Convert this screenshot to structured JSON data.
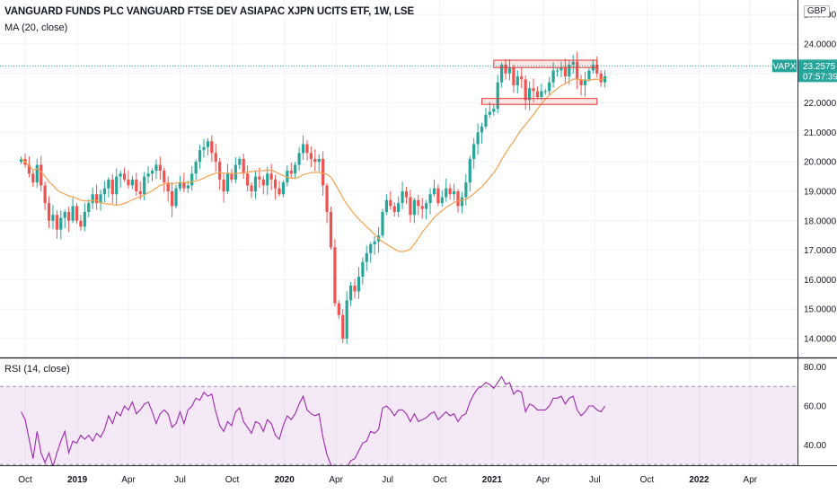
{
  "header": {
    "title": "VANGUARD FUNDS PLC VANGUARD FTSE DEV ASIAPAC XJPN UCITS ETF, 1W, LSE",
    "indicator_label": "MA (20, close)",
    "currency": "GBP",
    "rsi_label": "RSI (14, close)"
  },
  "price_tag": {
    "symbol": "VAPX",
    "price": "23.2575",
    "countdown": "07:57:39"
  },
  "colors": {
    "up": "#26a69a",
    "down": "#ef5350",
    "ma": "#f7a24e",
    "rsi_line": "#9c27b0",
    "rsi_band": "rgba(156,39,176,0.10)",
    "rect": "#e53935"
  },
  "chart_data": [
    {
      "type": "candlestick",
      "title": "VANGUARD FUNDS PLC VANGUARD FTSE DEV ASIAPAC XJPN UCITS ETF, 1W, LSE",
      "interval": "1W",
      "x_start": "2018-09-24",
      "x_ticks": [
        "Oct",
        "2019",
        "Apr",
        "Jul",
        "Oct",
        "2020",
        "Apr",
        "Jul",
        "Oct",
        "2021",
        "Apr",
        "Jul",
        "Oct",
        "2022",
        "Apr"
      ],
      "x_tick_dates": [
        "2018-10-01",
        "2019-01-01",
        "2019-04-01",
        "2019-07-01",
        "2019-10-01",
        "2020-01-01",
        "2020-04-01",
        "2020-07-01",
        "2020-10-01",
        "2021-01-01",
        "2021-04-01",
        "2021-07-01",
        "2021-10-01",
        "2022-01-01",
        "2022-04-01"
      ],
      "y_ticks": [
        "14.0000",
        "15.0000",
        "16.0000",
        "17.0000",
        "18.0000",
        "19.0000",
        "20.0000",
        "21.0000",
        "22.0000",
        "23.0000",
        "24.0000",
        "25.0000"
      ],
      "ylim": [
        13.6,
        25.4
      ],
      "close": [
        20.1,
        19.9,
        19.6,
        19.3,
        19.9,
        19.2,
        18.6,
        18.0,
        18.2,
        17.7,
        18.1,
        18.3,
        18.0,
        18.5,
        18.0,
        17.8,
        18.3,
        18.6,
        18.9,
        18.6,
        18.9,
        19.1,
        19.4,
        18.9,
        19.5,
        19.6,
        19.4,
        19.2,
        19.4,
        19.0,
        18.9,
        19.5,
        19.6,
        19.7,
        19.9,
        19.7,
        19.3,
        19.0,
        18.5,
        19.1,
        19.3,
        19.1,
        19.2,
        19.6,
        20.0,
        20.4,
        20.5,
        20.7,
        20.3,
        20.0,
        19.4,
        19.0,
        19.6,
        19.4,
        19.9,
        20.1,
        19.6,
        19.2,
        19.0,
        19.5,
        19.4,
        19.2,
        19.6,
        19.4,
        19.1,
        18.9,
        19.3,
        19.7,
        19.6,
        19.9,
        20.3,
        20.6,
        20.3,
        20.1,
        20.0,
        20.1,
        19.2,
        18.3,
        17.1,
        15.2,
        14.8,
        14.0,
        15.3,
        15.8,
        15.6,
        16.1,
        16.6,
        16.9,
        17.2,
        17.3,
        17.5,
        18.3,
        18.7,
        18.5,
        18.3,
        18.6,
        19.0,
        18.8,
        18.2,
        18.7,
        18.5,
        18.4,
        18.6,
        18.9,
        19.1,
        18.6,
        18.8,
        19.1,
        18.9,
        19.0,
        18.5,
        18.8,
        19.3,
        20.1,
        20.6,
        21.0,
        21.2,
        21.6,
        21.7,
        21.8,
        22.7,
        23.3,
        23.0,
        23.2,
        22.6,
        22.9,
        22.8,
        22.1,
        22.5,
        22.4,
        22.2,
        22.4,
        22.4,
        22.7,
        23.1,
        23.1,
        23.2,
        22.9,
        23.3,
        23.4,
        22.8,
        22.6,
        22.8,
        23.1,
        23.3,
        23.0,
        22.7,
        22.9
      ],
      "ma_period": 20,
      "last_price": 23.2575,
      "annotations": [
        {
          "shape": "rectangle",
          "x_start": "2021-01-04",
          "x_end": "2021-07-05",
          "y_low": 23.2,
          "y_high": 23.45
        },
        {
          "shape": "rectangle",
          "x_start": "2020-12-14",
          "x_end": "2021-07-05",
          "y_low": 21.95,
          "y_high": 22.15
        }
      ]
    },
    {
      "type": "line",
      "title": "RSI (14, close)",
      "y_ticks": [
        "40.00",
        "60.00",
        "80.00"
      ],
      "ylim": [
        28.0,
        83.0
      ],
      "bands": [
        30,
        70
      ],
      "values": [
        57.0,
        53.0,
        43.0,
        33.0,
        47.0,
        36.0,
        31.0,
        36.0,
        29.0,
        36.0,
        42.0,
        47.0,
        36.0,
        42.0,
        41.0,
        45.0,
        43.0,
        45.0,
        42.0,
        46.0,
        44.0,
        48.0,
        55.0,
        51.0,
        57.0,
        55.0,
        60.0,
        58.0,
        62.0,
        56.0,
        58.0,
        61.0,
        62.0,
        57.0,
        51.0,
        56.0,
        58.0,
        56.0,
        49.0,
        51.0,
        57.0,
        51.0,
        58.0,
        60.0,
        64.0,
        63.0,
        67.0,
        65.0,
        66.0,
        57.0,
        50.0,
        47.0,
        52.0,
        50.0,
        57.0,
        59.0,
        52.0,
        49.0,
        46.0,
        52.0,
        51.0,
        47.0,
        53.0,
        51.0,
        45.0,
        43.0,
        50.0,
        55.0,
        53.0,
        56.0,
        61.0,
        65.0,
        58.0,
        56.0,
        55.0,
        56.0,
        44.0,
        35.0,
        30.0,
        27.0,
        25.0,
        21.0,
        28.0,
        32.0,
        33.0,
        37.0,
        41.0,
        42.0,
        47.0,
        46.0,
        48.0,
        59.0,
        60.0,
        58.0,
        55.0,
        58.0,
        58.0,
        56.0,
        52.0,
        56.0,
        52.0,
        53.0,
        54.0,
        56.0,
        57.0,
        53.0,
        55.0,
        57.0,
        55.0,
        56.0,
        52.0,
        55.0,
        56.0,
        62.0,
        66.0,
        69.0,
        70.0,
        72.0,
        71.0,
        69.0,
        72.0,
        75.0,
        71.0,
        72.0,
        66.0,
        68.0,
        67.0,
        57.0,
        61.0,
        60.0,
        58.0,
        58.0,
        58.0,
        60.0,
        64.0,
        64.0,
        65.0,
        61.0,
        64.0,
        65.0,
        58.0,
        55.0,
        57.0,
        60.0,
        60.0,
        58.0,
        57.0,
        60.0
      ]
    }
  ]
}
